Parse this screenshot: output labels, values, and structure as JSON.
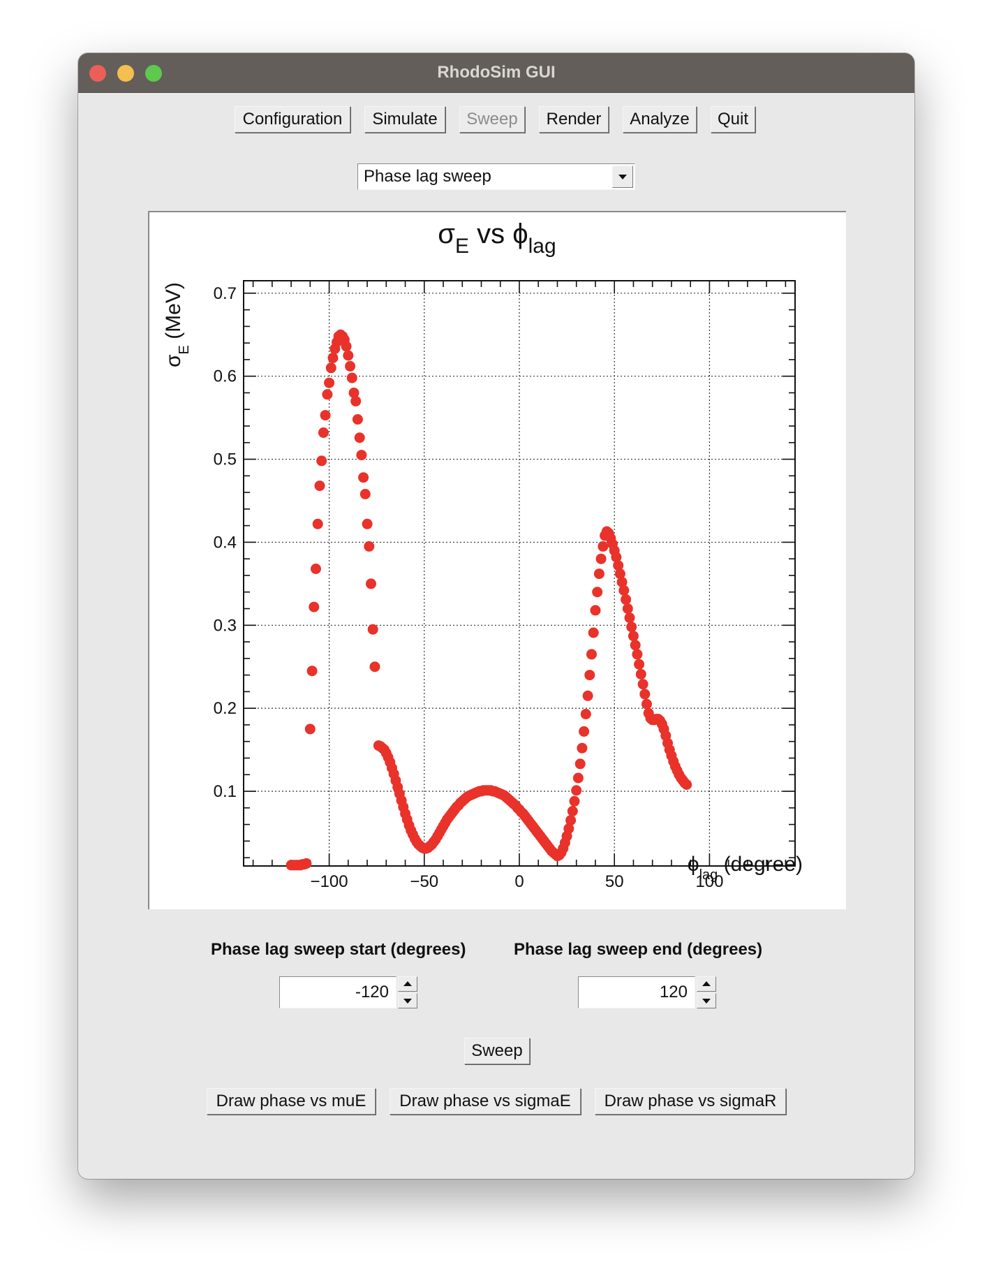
{
  "window": {
    "title": "RhodoSim GUI"
  },
  "toolbar": [
    {
      "label": "Configuration",
      "enabled": true
    },
    {
      "label": "Simulate",
      "enabled": true
    },
    {
      "label": "Sweep",
      "enabled": false
    },
    {
      "label": "Render",
      "enabled": true
    },
    {
      "label": "Analyze",
      "enabled": true
    },
    {
      "label": "Quit",
      "enabled": true
    }
  ],
  "mode_select": {
    "value": "Phase lag sweep"
  },
  "chart_data": {
    "type": "scatter",
    "title_main": "σ",
    "title_main_sub": "E",
    "title_mid": " vs ",
    "title_phi": "ϕ",
    "title_phi_sub": "lag",
    "xlabel_sym": "ϕ",
    "xlabel_sub": "lag",
    "xlabel_unit": " (degree)",
    "ylabel_sym": "σ",
    "ylabel_sub": "E",
    "ylabel_unit": " (MeV)",
    "xlim": [
      -145,
      145
    ],
    "ylim": [
      0.01,
      0.715
    ],
    "x_ticks": [
      -100,
      -50,
      0,
      50,
      100
    ],
    "x_tick_labels": [
      "−100",
      "−50",
      "0",
      "50",
      "100"
    ],
    "y_ticks": [
      0.1,
      0.2,
      0.3,
      0.4,
      0.5,
      0.6,
      0.7
    ],
    "y_tick_labels": [
      "0.1",
      "0.2",
      "0.3",
      "0.4",
      "0.5",
      "0.6",
      "0.7"
    ],
    "grid": true,
    "marker_color": "#e8322a",
    "series": [
      {
        "points": [
          [
            -120,
            0.011
          ],
          [
            -119,
            0.011
          ],
          [
            -118,
            0.011
          ],
          [
            -117,
            0.011
          ],
          [
            -116,
            0.011
          ],
          [
            -115,
            0.011
          ],
          [
            -114,
            0.012
          ],
          [
            -113,
            0.012
          ],
          [
            -112,
            0.013
          ],
          [
            -110,
            0.175
          ],
          [
            -109,
            0.245
          ],
          [
            -108,
            0.322
          ],
          [
            -107,
            0.368
          ],
          [
            -106,
            0.422
          ],
          [
            -105,
            0.468
          ],
          [
            -104,
            0.498
          ],
          [
            -103,
            0.532
          ],
          [
            -102,
            0.553
          ],
          [
            -101,
            0.578
          ],
          [
            -100,
            0.592
          ],
          [
            -99,
            0.61
          ],
          [
            -98,
            0.622
          ],
          [
            -97,
            0.633
          ],
          [
            -96,
            0.641
          ],
          [
            -95,
            0.648
          ],
          [
            -94,
            0.65
          ],
          [
            -93,
            0.648
          ],
          [
            -92,
            0.644
          ],
          [
            -91,
            0.636
          ],
          [
            -90,
            0.625
          ],
          [
            -89,
            0.612
          ],
          [
            -88,
            0.598
          ],
          [
            -87,
            0.58
          ],
          [
            -86,
            0.57
          ],
          [
            -85,
            0.548
          ],
          [
            -84,
            0.526
          ],
          [
            -83,
            0.505
          ],
          [
            -82,
            0.478
          ],
          [
            -81,
            0.458
          ],
          [
            -80,
            0.422
          ],
          [
            -79,
            0.395
          ],
          [
            -78,
            0.35
          ],
          [
            -77,
            0.295
          ],
          [
            -76,
            0.25
          ],
          [
            -74,
            0.155
          ],
          [
            -73,
            0.154
          ],
          [
            -72,
            0.152
          ],
          [
            -71,
            0.15
          ],
          [
            -70,
            0.146
          ],
          [
            -69,
            0.141
          ],
          [
            -68,
            0.135
          ],
          [
            -67,
            0.128
          ],
          [
            -66,
            0.121
          ],
          [
            -65,
            0.113
          ],
          [
            -64,
            0.105
          ],
          [
            -63,
            0.097
          ],
          [
            -62,
            0.089
          ],
          [
            -61,
            0.081
          ],
          [
            -60,
            0.073
          ],
          [
            -59,
            0.066
          ],
          [
            -58,
            0.059
          ],
          [
            -57,
            0.053
          ],
          [
            -56,
            0.048
          ],
          [
            -55,
            0.043
          ],
          [
            -54,
            0.039
          ],
          [
            -53,
            0.036
          ],
          [
            -52,
            0.034
          ],
          [
            -51,
            0.032
          ],
          [
            -50,
            0.031
          ],
          [
            -49,
            0.031
          ],
          [
            -48,
            0.032
          ],
          [
            -47,
            0.034
          ],
          [
            -46,
            0.036
          ],
          [
            -45,
            0.039
          ],
          [
            -44,
            0.042
          ],
          [
            -43,
            0.046
          ],
          [
            -42,
            0.05
          ],
          [
            -41,
            0.054
          ],
          [
            -40,
            0.058
          ],
          [
            -39,
            0.062
          ],
          [
            -38,
            0.066
          ],
          [
            -37,
            0.069
          ],
          [
            -36,
            0.072
          ],
          [
            -35,
            0.075
          ],
          [
            -34,
            0.078
          ],
          [
            -33,
            0.081
          ],
          [
            -32,
            0.083
          ],
          [
            -31,
            0.086
          ],
          [
            -30,
            0.088
          ],
          [
            -29,
            0.09
          ],
          [
            -28,
            0.092
          ],
          [
            -27,
            0.094
          ],
          [
            -26,
            0.095
          ],
          [
            -25,
            0.096
          ],
          [
            -24,
            0.097
          ],
          [
            -23,
            0.098
          ],
          [
            -22,
            0.099
          ],
          [
            -21,
            0.1
          ],
          [
            -20,
            0.1
          ],
          [
            -19,
            0.101
          ],
          [
            -18,
            0.101
          ],
          [
            -17,
            0.101
          ],
          [
            -16,
            0.101
          ],
          [
            -15,
            0.101
          ],
          [
            -14,
            0.1
          ],
          [
            -13,
            0.1
          ],
          [
            -12,
            0.099
          ],
          [
            -11,
            0.098
          ],
          [
            -10,
            0.097
          ],
          [
            -9,
            0.096
          ],
          [
            -8,
            0.095
          ],
          [
            -7,
            0.093
          ],
          [
            -6,
            0.091
          ],
          [
            -5,
            0.089
          ],
          [
            -4,
            0.087
          ],
          [
            -3,
            0.085
          ],
          [
            -2,
            0.083
          ],
          [
            -1,
            0.08
          ],
          [
            0,
            0.078
          ],
          [
            1,
            0.075
          ],
          [
            2,
            0.073
          ],
          [
            3,
            0.07
          ],
          [
            4,
            0.067
          ],
          [
            5,
            0.064
          ],
          [
            6,
            0.061
          ],
          [
            7,
            0.058
          ],
          [
            8,
            0.055
          ],
          [
            9,
            0.052
          ],
          [
            10,
            0.049
          ],
          [
            11,
            0.046
          ],
          [
            12,
            0.043
          ],
          [
            13,
            0.04
          ],
          [
            14,
            0.037
          ],
          [
            15,
            0.034
          ],
          [
            16,
            0.031
          ],
          [
            17,
            0.028
          ],
          [
            18,
            0.026
          ],
          [
            19,
            0.024
          ],
          [
            20,
            0.022
          ],
          [
            21,
            0.023
          ],
          [
            22,
            0.026
          ],
          [
            23,
            0.031
          ],
          [
            24,
            0.038
          ],
          [
            25,
            0.046
          ],
          [
            26,
            0.055
          ],
          [
            27,
            0.065
          ],
          [
            28,
            0.076
          ],
          [
            29,
            0.088
          ],
          [
            30,
            0.101
          ],
          [
            31,
            0.116
          ],
          [
            32,
            0.133
          ],
          [
            33,
            0.152
          ],
          [
            34,
            0.172
          ],
          [
            35,
            0.193
          ],
          [
            36,
            0.215
          ],
          [
            37,
            0.24
          ],
          [
            38,
            0.265
          ],
          [
            39,
            0.291
          ],
          [
            40,
            0.318
          ],
          [
            41,
            0.34
          ],
          [
            42,
            0.362
          ],
          [
            43,
            0.38
          ],
          [
            44,
            0.395
          ],
          [
            45,
            0.408
          ],
          [
            46,
            0.413
          ],
          [
            47,
            0.411
          ],
          [
            48,
            0.405
          ],
          [
            49,
            0.398
          ],
          [
            50,
            0.39
          ],
          [
            51,
            0.382
          ],
          [
            52,
            0.372
          ],
          [
            53,
            0.362
          ],
          [
            54,
            0.352
          ],
          [
            55,
            0.342
          ],
          [
            56,
            0.331
          ],
          [
            57,
            0.32
          ],
          [
            58,
            0.309
          ],
          [
            59,
            0.298
          ],
          [
            60,
            0.287
          ],
          [
            61,
            0.276
          ],
          [
            62,
            0.265
          ],
          [
            63,
            0.253
          ],
          [
            64,
            0.241
          ],
          [
            65,
            0.229
          ],
          [
            66,
            0.217
          ],
          [
            67,
            0.205
          ],
          [
            68,
            0.194
          ],
          [
            69,
            0.188
          ],
          [
            70,
            0.186
          ],
          [
            71,
            0.186
          ],
          [
            72,
            0.187
          ],
          [
            73,
            0.187
          ],
          [
            74,
            0.185
          ],
          [
            75,
            0.181
          ],
          [
            76,
            0.175
          ],
          [
            77,
            0.167
          ],
          [
            78,
            0.158
          ],
          [
            79,
            0.15
          ],
          [
            80,
            0.143
          ],
          [
            81,
            0.136
          ],
          [
            82,
            0.13
          ],
          [
            83,
            0.125
          ],
          [
            84,
            0.12
          ],
          [
            85,
            0.116
          ],
          [
            86,
            0.113
          ],
          [
            87,
            0.11
          ],
          [
            88,
            0.108
          ]
        ]
      }
    ]
  },
  "sweep_start": {
    "label": "Phase lag sweep start (degrees)",
    "value": "-120"
  },
  "sweep_end": {
    "label": "Phase lag sweep end (degrees)",
    "value": "120"
  },
  "sweep_button": "Sweep",
  "draw_buttons": [
    "Draw phase vs muE",
    "Draw phase vs sigmaE",
    "Draw phase vs sigmaR"
  ]
}
